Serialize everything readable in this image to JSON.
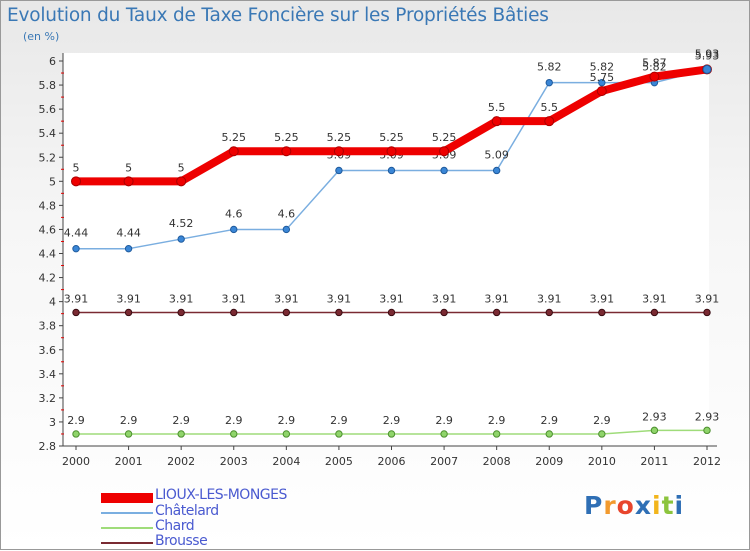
{
  "header": {
    "title": "Evolution du Taux de Taxe Foncière sur les Propriétés Bâties",
    "unit": "(en %)"
  },
  "brand": {
    "letters": [
      "P",
      "r",
      "o",
      "x",
      "i",
      "t",
      "i"
    ],
    "colors": [
      "#2f6fb5",
      "#f29a2e",
      "#e8452c",
      "#2f6fb5",
      "#f2b51c",
      "#8cc43d",
      "#2f6fb5"
    ]
  },
  "chart_data": {
    "type": "line",
    "x": [
      2000,
      2001,
      2002,
      2003,
      2004,
      2005,
      2006,
      2007,
      2008,
      2009,
      2010,
      2011,
      2012
    ],
    "ylim": [
      2.8,
      6.0
    ],
    "yticks": [
      "2.8",
      "3",
      "3.2",
      "3.4",
      "3.6",
      "3.8",
      "4",
      "4.2",
      "4.4",
      "4.6",
      "4.8",
      "5",
      "5.2",
      "5.4",
      "5.6",
      "5.8",
      "6"
    ],
    "grid": false,
    "legend_position": "bottom-left",
    "series": [
      {
        "name": "LIOUX-LES-MONGES",
        "color": "#ee0000",
        "values": [
          5,
          5,
          5,
          5.25,
          5.25,
          5.25,
          5.25,
          5.25,
          5.5,
          5.5,
          5.75,
          5.87,
          5.93
        ],
        "labels": [
          "5",
          "5",
          "5",
          "5.25",
          "5.25",
          "5.25",
          "5.25",
          "5.25",
          "5.5",
          "5.5",
          "5.75",
          "5.87",
          "5.93"
        ]
      },
      {
        "name": "Châtelard",
        "color": "#7aaee0",
        "values": [
          4.44,
          4.44,
          4.52,
          4.6,
          4.6,
          5.09,
          5.09,
          5.09,
          5.09,
          5.82,
          5.82,
          5.82,
          5.93
        ],
        "labels": [
          "4.44",
          "4.44",
          "4.52",
          "4.6",
          "4.6",
          "5.09",
          "5.09",
          "5.09",
          "5.09",
          "5.82",
          "5.82",
          "5.82",
          "5.93"
        ]
      },
      {
        "name": "Chard",
        "color": "#9fdc7a",
        "values": [
          2.9,
          2.9,
          2.9,
          2.9,
          2.9,
          2.9,
          2.9,
          2.9,
          2.9,
          2.9,
          2.9,
          2.93,
          2.93
        ],
        "labels": [
          "2.9",
          "2.9",
          "2.9",
          "2.9",
          "2.9",
          "2.9",
          "2.9",
          "2.9",
          "2.9",
          "2.9",
          "2.9",
          "2.93",
          "2.93"
        ]
      },
      {
        "name": "Brousse",
        "color": "#7a2a32",
        "values": [
          3.91,
          3.91,
          3.91,
          3.91,
          3.91,
          3.91,
          3.91,
          3.91,
          3.91,
          3.91,
          3.91,
          3.91,
          3.91
        ],
        "labels": [
          "3.91",
          "3.91",
          "3.91",
          "3.91",
          "3.91",
          "3.91",
          "3.91",
          "3.91",
          "3.91",
          "3.91",
          "3.91",
          "3.91",
          "3.91"
        ]
      }
    ]
  }
}
